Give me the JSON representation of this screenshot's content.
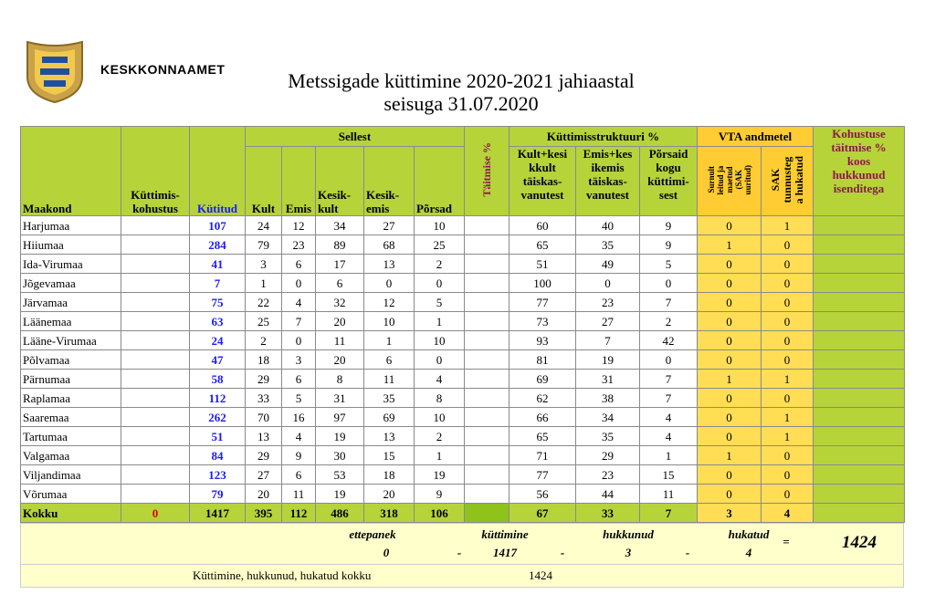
{
  "logo": {
    "text": "KESKKONNAAMET"
  },
  "title": [
    "Metssigade küttimine 2020-2021 jahiaastal",
    "seisuga 31.07.2020"
  ],
  "table": {
    "headers": {
      "county": "Maakond",
      "quota": "Küttimis-\nkohustus",
      "killed": "Kütitud",
      "of_which": "Sellest",
      "kult": "Kult",
      "emis": "Emis",
      "kesikkult": "Kesik-\nkult",
      "kesikemis": "Kesik-\nemis",
      "porsad": "Põrsad",
      "fulfil": "Täitmise %",
      "structure": "Küttimisstruktuuri %",
      "s1": "Kult+kesi\nkkult\ntäiskas-\nvanutest",
      "s2": "Emis+kes\nikemis\ntäiskas-\nvanutest",
      "s3": "Põrsaid\nkogu\nküttimi-\nsest",
      "vta": "VTA andmetel",
      "v1": "Surnult\nleitud ja\nmaetud\n(SAK\nuuritud)",
      "v2": "SAK\ntunnusteg\na hukatud",
      "fulfil_total": "Kohustuse\ntäitmise %\nkoos\nhukkunud\nisenditega"
    },
    "rows": [
      [
        "Harjumaa",
        107,
        24,
        12,
        34,
        27,
        10,
        60,
        40,
        9,
        0,
        1
      ],
      [
        "Hiiumaa",
        284,
        79,
        23,
        89,
        68,
        25,
        65,
        35,
        9,
        1,
        0
      ],
      [
        "Ida-Virumaa",
        41,
        3,
        6,
        17,
        13,
        2,
        51,
        49,
        5,
        0,
        0
      ],
      [
        "Jõgevamaa",
        7,
        1,
        0,
        6,
        0,
        0,
        100,
        0,
        0,
        0,
        0
      ],
      [
        "Järvamaa",
        75,
        22,
        4,
        32,
        12,
        5,
        77,
        23,
        7,
        0,
        0
      ],
      [
        "Läänemaa",
        63,
        25,
        7,
        20,
        10,
        1,
        73,
        27,
        2,
        0,
        0
      ],
      [
        "Lääne-Virumaa",
        24,
        2,
        0,
        11,
        1,
        10,
        93,
        7,
        42,
        0,
        0
      ],
      [
        "Põlvamaa",
        47,
        18,
        3,
        20,
        6,
        0,
        81,
        19,
        0,
        0,
        0
      ],
      [
        "Pärnumaa",
        58,
        29,
        6,
        8,
        11,
        4,
        69,
        31,
        7,
        1,
        1
      ],
      [
        "Raplamaa",
        112,
        33,
        5,
        31,
        35,
        8,
        62,
        38,
        7,
        0,
        0
      ],
      [
        "Saaremaa",
        262,
        70,
        16,
        97,
        69,
        10,
        66,
        34,
        4,
        0,
        1
      ],
      [
        "Tartumaa",
        51,
        13,
        4,
        19,
        13,
        2,
        65,
        35,
        4,
        0,
        1
      ],
      [
        "Valgamaa",
        84,
        29,
        9,
        30,
        15,
        1,
        71,
        29,
        1,
        1,
        0
      ],
      [
        "Viljandimaa",
        123,
        27,
        6,
        53,
        18,
        19,
        77,
        23,
        15,
        0,
        0
      ],
      [
        "Võrumaa",
        79,
        20,
        11,
        19,
        20,
        9,
        56,
        44,
        11,
        0,
        0
      ]
    ],
    "total": {
      "label": "Kokku",
      "quota": 0,
      "values": [
        1417,
        395,
        112,
        486,
        318,
        106,
        67,
        33,
        7,
        3,
        4
      ]
    }
  },
  "summary": {
    "items": [
      {
        "label": "ettepanek",
        "value": 0
      },
      {
        "label": "küttimine",
        "value": 1417
      },
      {
        "label": "hukkunud",
        "value": 3
      },
      {
        "label": "hukatud",
        "value": 4
      }
    ],
    "ops": [
      "-",
      "-",
      "-",
      "="
    ],
    "result": 1424
  },
  "footer": {
    "label": "Küttimine, hukkunud, hukatud kokku",
    "value": 1424
  }
}
